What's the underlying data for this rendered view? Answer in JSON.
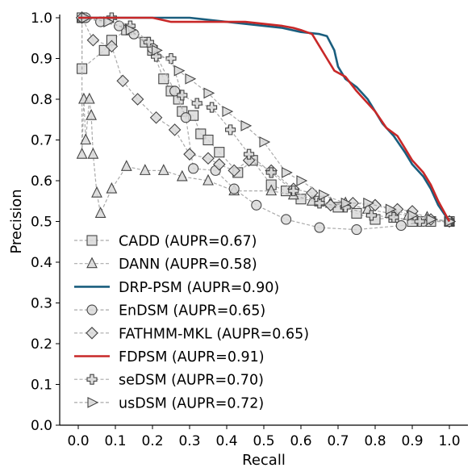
{
  "chart_data": {
    "type": "line",
    "title": "",
    "xlabel": "Recall",
    "ylabel": "Precision",
    "xlim": [
      -0.05,
      1.05
    ],
    "ylim": [
      0.0,
      1.0
    ],
    "xticks": [
      "0.0",
      "0.1",
      "0.2",
      "0.3",
      "0.4",
      "0.5",
      "0.6",
      "0.7",
      "0.8",
      "0.9",
      "1.0"
    ],
    "yticks": [
      "0.0",
      "0.1",
      "0.2",
      "0.3",
      "0.4",
      "0.5",
      "0.6",
      "0.7",
      "0.8",
      "0.9",
      "1.0"
    ],
    "grid": false,
    "legend_position": "lower-left",
    "series": [
      {
        "name": "CADD (AUPR=0.67)",
        "color": "#aaaaaa",
        "marker": "square",
        "style": "dashed",
        "x": [
          0.0,
          0.01,
          0.01,
          0.07,
          0.09,
          0.13,
          0.18,
          0.2,
          0.23,
          0.25,
          0.27,
          0.28,
          0.31,
          0.33,
          0.35,
          0.38,
          0.43,
          0.47,
          0.52,
          0.56,
          0.6,
          0.65,
          0.7,
          0.75,
          0.8,
          0.85,
          0.9,
          0.95,
          1.0
        ],
        "y": [
          1.0,
          1.0,
          0.875,
          0.92,
          0.945,
          0.97,
          0.94,
          0.92,
          0.85,
          0.82,
          0.8,
          0.77,
          0.76,
          0.715,
          0.7,
          0.67,
          0.62,
          0.65,
          0.59,
          0.575,
          0.555,
          0.55,
          0.535,
          0.52,
          0.505,
          0.51,
          0.5,
          0.5,
          0.5
        ]
      },
      {
        "name": "DANN (AUPR=0.58)",
        "color": "#aaaaaa",
        "marker": "triangle",
        "style": "dashed",
        "x": [
          0.0,
          0.01,
          0.01,
          0.015,
          0.02,
          0.03,
          0.035,
          0.04,
          0.05,
          0.06,
          0.09,
          0.13,
          0.18,
          0.23,
          0.28,
          0.35,
          0.42,
          0.52,
          0.58,
          0.63,
          0.68,
          0.72,
          0.78,
          0.84,
          0.89,
          0.94,
          1.0
        ],
        "y": [
          1.0,
          1.0,
          0.665,
          0.8,
          0.7,
          0.8,
          0.76,
          0.665,
          0.57,
          0.52,
          0.58,
          0.635,
          0.625,
          0.625,
          0.61,
          0.6,
          0.575,
          0.575,
          0.565,
          0.55,
          0.545,
          0.545,
          0.53,
          0.52,
          0.515,
          0.51,
          0.5
        ]
      },
      {
        "name": "DRP-PSM (AUPR=0.90)",
        "color": "#1a5e7e",
        "marker": "none",
        "style": "solid",
        "x": [
          0.0,
          0.05,
          0.1,
          0.15,
          0.2,
          0.3,
          0.35,
          0.4,
          0.45,
          0.5,
          0.55,
          0.6,
          0.65,
          0.67,
          0.69,
          0.7,
          0.72,
          0.75,
          0.78,
          0.8,
          0.82,
          0.85,
          0.88,
          0.9,
          0.93,
          0.95,
          0.97,
          1.0
        ],
        "y": [
          1.0,
          1.0,
          1.0,
          1.0,
          1.0,
          1.0,
          0.995,
          0.99,
          0.985,
          0.98,
          0.975,
          0.965,
          0.96,
          0.955,
          0.92,
          0.88,
          0.85,
          0.83,
          0.8,
          0.77,
          0.74,
          0.71,
          0.67,
          0.64,
          0.61,
          0.58,
          0.54,
          0.5
        ]
      },
      {
        "name": "EnDSM (AUPR=0.65)",
        "color": "#aaaaaa",
        "marker": "circle",
        "style": "dashed",
        "x": [
          0.0,
          0.02,
          0.06,
          0.11,
          0.15,
          0.2,
          0.26,
          0.29,
          0.31,
          0.37,
          0.42,
          0.48,
          0.56,
          0.65,
          0.75,
          0.87,
          0.93,
          1.0
        ],
        "y": [
          1.0,
          1.0,
          0.99,
          0.98,
          0.96,
          0.925,
          0.82,
          0.755,
          0.63,
          0.625,
          0.58,
          0.54,
          0.505,
          0.485,
          0.48,
          0.49,
          0.5,
          0.5
        ]
      },
      {
        "name": "FATHMM-MKL (AUPR=0.65)",
        "color": "#aaaaaa",
        "marker": "diamond",
        "style": "dashed",
        "x": [
          0.0,
          0.01,
          0.04,
          0.09,
          0.12,
          0.16,
          0.21,
          0.26,
          0.3,
          0.35,
          0.38,
          0.42,
          0.46,
          0.52,
          0.58,
          0.63,
          0.68,
          0.74,
          0.8,
          0.86,
          0.9,
          0.95,
          1.0
        ],
        "y": [
          1.0,
          1.0,
          0.945,
          0.93,
          0.845,
          0.8,
          0.755,
          0.725,
          0.665,
          0.655,
          0.64,
          0.625,
          0.65,
          0.625,
          0.58,
          0.57,
          0.54,
          0.545,
          0.54,
          0.53,
          0.525,
          0.505,
          0.5
        ]
      },
      {
        "name": "FDPSM (AUPR=0.91)",
        "color": "#c82828",
        "marker": "none",
        "style": "solid",
        "x": [
          0.0,
          0.1,
          0.2,
          0.25,
          0.3,
          0.4,
          0.45,
          0.5,
          0.55,
          0.58,
          0.6,
          0.63,
          0.65,
          0.67,
          0.69,
          0.72,
          0.75,
          0.78,
          0.8,
          0.83,
          0.86,
          0.88,
          0.9,
          0.93,
          0.95,
          0.97,
          1.0
        ],
        "y": [
          1.0,
          1.0,
          1.0,
          0.99,
          0.99,
          0.99,
          0.99,
          0.985,
          0.98,
          0.975,
          0.97,
          0.96,
          0.93,
          0.9,
          0.87,
          0.855,
          0.82,
          0.79,
          0.77,
          0.73,
          0.71,
          0.68,
          0.65,
          0.62,
          0.59,
          0.55,
          0.5
        ]
      },
      {
        "name": "seDSM (AUPR=0.70)",
        "color": "#aaaaaa",
        "marker": "plus",
        "style": "dashed",
        "x": [
          0.0,
          0.09,
          0.14,
          0.19,
          0.21,
          0.25,
          0.28,
          0.32,
          0.36,
          0.41,
          0.46,
          0.52,
          0.58,
          0.65,
          0.72,
          0.79,
          0.85,
          0.92,
          1.0
        ],
        "y": [
          1.0,
          1.0,
          0.98,
          0.94,
          0.905,
          0.9,
          0.81,
          0.79,
          0.78,
          0.725,
          0.665,
          0.62,
          0.575,
          0.545,
          0.535,
          0.515,
          0.51,
          0.5,
          0.5
        ]
      },
      {
        "name": "usDSM (AUPR=0.72)",
        "color": "#aaaaaa",
        "marker": "triangle-right",
        "style": "dashed",
        "x": [
          0.0,
          0.02,
          0.08,
          0.14,
          0.21,
          0.27,
          0.3,
          0.35,
          0.4,
          0.45,
          0.5,
          0.56,
          0.6,
          0.66,
          0.72,
          0.78,
          0.84,
          0.9,
          0.95,
          1.0
        ],
        "y": [
          1.0,
          1.0,
          0.99,
          0.97,
          0.92,
          0.87,
          0.85,
          0.815,
          0.77,
          0.735,
          0.695,
          0.62,
          0.6,
          0.565,
          0.545,
          0.545,
          0.53,
          0.515,
          0.505,
          0.5
        ]
      }
    ]
  }
}
